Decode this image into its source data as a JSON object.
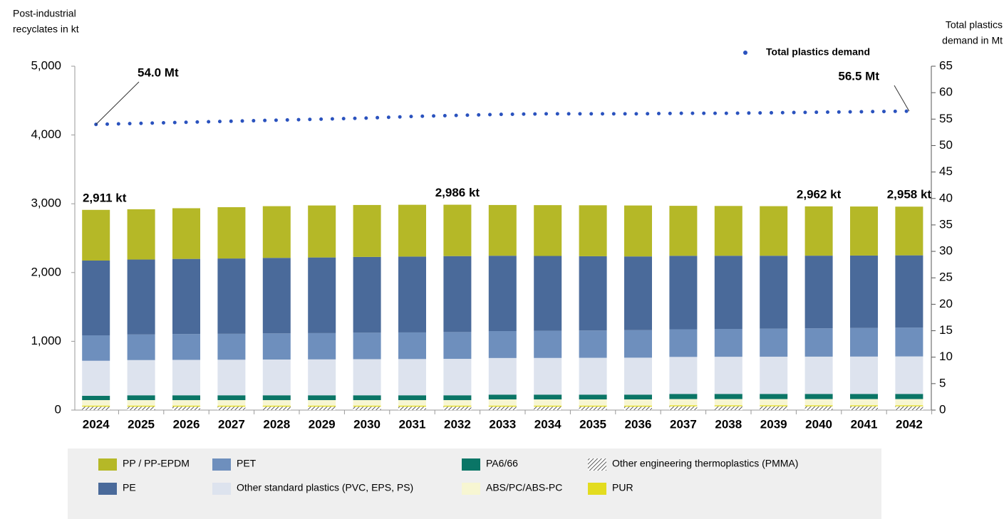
{
  "chart_data": {
    "type": "bar",
    "stacked": true,
    "ylabel": [
      "Post-industrial",
      "recyclates in kt"
    ],
    "y2label": [
      "Total plastics",
      "demand in Mt"
    ],
    "categories": [
      "2024",
      "2025",
      "2026",
      "2027",
      "2028",
      "2029",
      "2030",
      "2031",
      "2032",
      "2033",
      "2034",
      "2035",
      "2036",
      "2037",
      "2038",
      "2039",
      "2040",
      "2041",
      "2042"
    ],
    "series": [
      {
        "name": "Other engineering thermoplastics (PMMA)",
        "color": "#333333",
        "hatch": true,
        "values": [
          50,
          50,
          50,
          50,
          50,
          50,
          50,
          50,
          50,
          50,
          50,
          50,
          50,
          55,
          55,
          55,
          55,
          55,
          55
        ]
      },
      {
        "name": "PUR",
        "color": "#e3dc1f",
        "values": [
          15,
          15,
          15,
          15,
          15,
          15,
          15,
          15,
          15,
          15,
          15,
          15,
          15,
          15,
          15,
          15,
          15,
          15,
          15
        ]
      },
      {
        "name": "ABS/PC/ABS-PC",
        "color": "#f7f6d2",
        "values": [
          80,
          80,
          80,
          80,
          80,
          80,
          80,
          80,
          80,
          90,
          90,
          90,
          90,
          90,
          90,
          90,
          90,
          90,
          90
        ]
      },
      {
        "name": "PA6/66",
        "color": "#0a7566",
        "values": [
          62,
          70,
          70,
          70,
          70,
          70,
          70,
          70,
          70,
          70,
          70,
          70,
          70,
          75,
          75,
          75,
          75,
          75,
          75
        ]
      },
      {
        "name": "Other standard plastics (PVC, EPS, PS)",
        "color": "#dde3ee",
        "values": [
          510,
          512,
          515,
          517,
          520,
          522,
          525,
          527,
          530,
          532,
          533,
          535,
          537,
          538,
          540,
          541,
          542,
          543,
          545
        ]
      },
      {
        "name": "PET",
        "color": "#6e8fbd",
        "values": [
          370,
          372,
          375,
          377,
          380,
          382,
          385,
          387,
          390,
          392,
          395,
          397,
          400,
          402,
          405,
          408,
          412,
          416,
          420
        ]
      },
      {
        "name": "PE",
        "color": "#4a6a9a",
        "values": [
          1087,
          1090,
          1093,
          1095,
          1098,
          1100,
          1102,
          1103,
          1104,
          1095,
          1088,
          1080,
          1072,
          1068,
          1064,
          1060,
          1056,
          1053,
          1050
        ]
      },
      {
        "name": "PP / PP-EPDM",
        "color": "#b5b827",
        "values": [
          737,
          731,
          737,
          746,
          752,
          756,
          755,
          753,
          747,
          738,
          739,
          741,
          741,
          727,
          724,
          721,
          717,
          713,
          708
        ]
      },
      {
        "name": "Total plastics demand",
        "color": "#2a52be",
        "type": "line",
        "axis": "y2",
        "values": [
          54.0,
          54.2,
          54.4,
          54.6,
          54.8,
          55.0,
          55.2,
          55.5,
          55.7,
          55.9,
          56.0,
          56.0,
          56.0,
          56.1,
          56.1,
          56.2,
          56.3,
          56.4,
          56.5
        ]
      }
    ],
    "ylim": [
      0,
      5000
    ],
    "yticks": [
      0,
      {
        "value": 1000,
        "label": "1,000"
      },
      {
        "value": 2000,
        "label": "2,000"
      },
      {
        "value": 3000,
        "label": "3,000"
      },
      {
        "value": 4000,
        "label": "4,000"
      },
      {
        "value": 5000,
        "label": "5,000"
      }
    ],
    "y2lim": [
      0,
      65
    ],
    "y2ticks": [
      0,
      5,
      10,
      15,
      20,
      25,
      30,
      35,
      40,
      45,
      50,
      55,
      60,
      65
    ],
    "total_labels": [
      {
        "category": "2024",
        "text": "2,911 kt"
      },
      {
        "category": "2032",
        "text": "2,986 kt"
      },
      {
        "category": "2040",
        "text": "2,962 kt"
      },
      {
        "category": "2042",
        "text": "2,958 kt"
      }
    ],
    "line_labels": [
      {
        "category": "2024",
        "text": "54.0 Mt"
      },
      {
        "category": "2042",
        "text": "56.5 Mt"
      }
    ]
  }
}
